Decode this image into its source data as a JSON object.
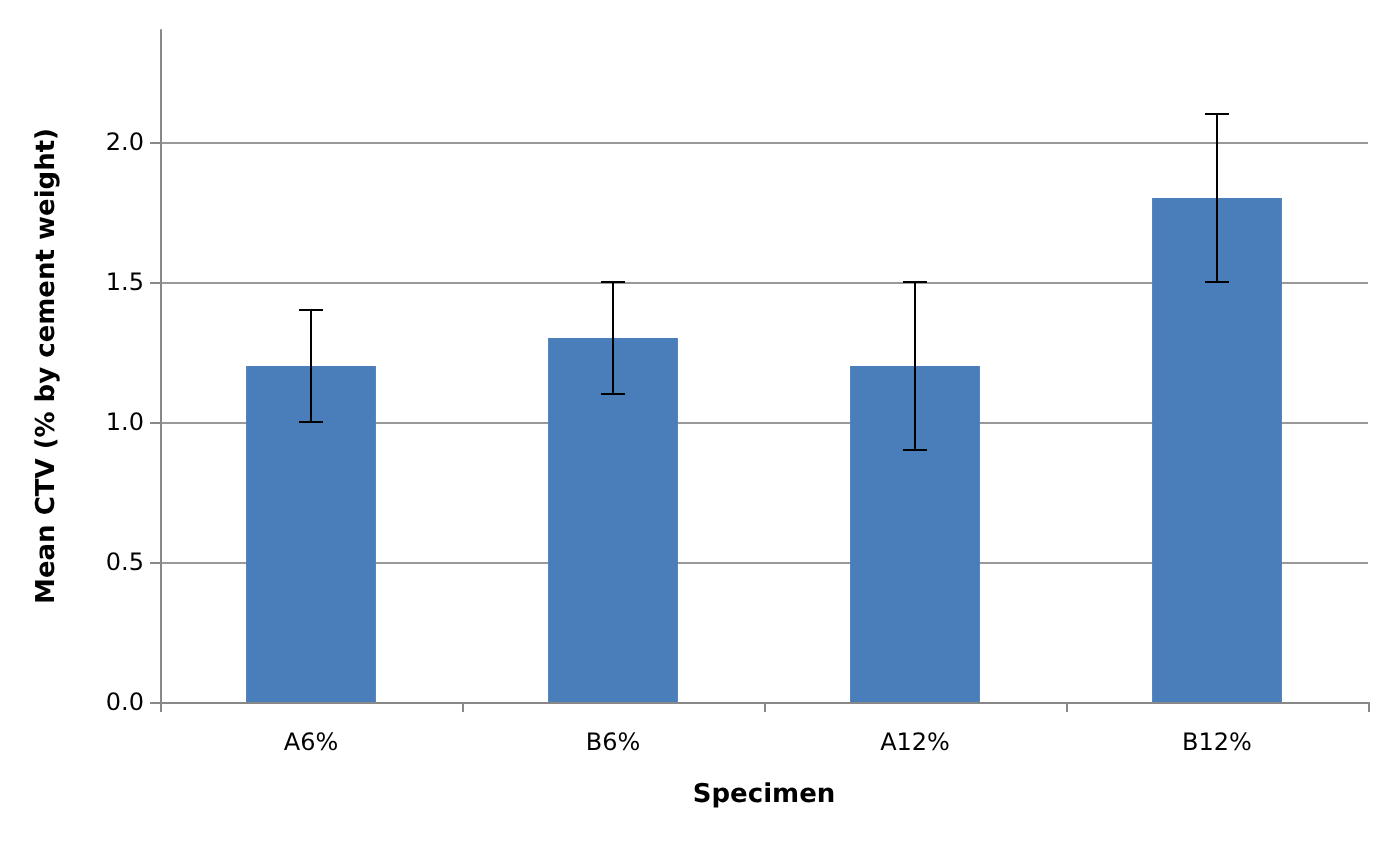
{
  "chart_data": {
    "type": "bar",
    "xlabel": "Specimen",
    "ylabel": "Mean CTV (% by cement weight)",
    "categories": [
      "A6%",
      "B6%",
      "A12%",
      "B12%"
    ],
    "values": [
      1.2,
      1.3,
      1.2,
      1.8
    ],
    "errors": [
      0.2,
      0.2,
      0.3,
      0.3
    ],
    "color": "#4a7ebb",
    "ylim": [
      0,
      2.4
    ],
    "yticks": [
      {
        "value": 0,
        "label": "0.0"
      },
      {
        "value": 0.5,
        "label": "0.5"
      },
      {
        "value": 1,
        "label": "1.0"
      },
      {
        "value": 1.5,
        "label": "1.5"
      },
      {
        "value": 2,
        "label": "2.0"
      }
    ],
    "grid": "y"
  }
}
